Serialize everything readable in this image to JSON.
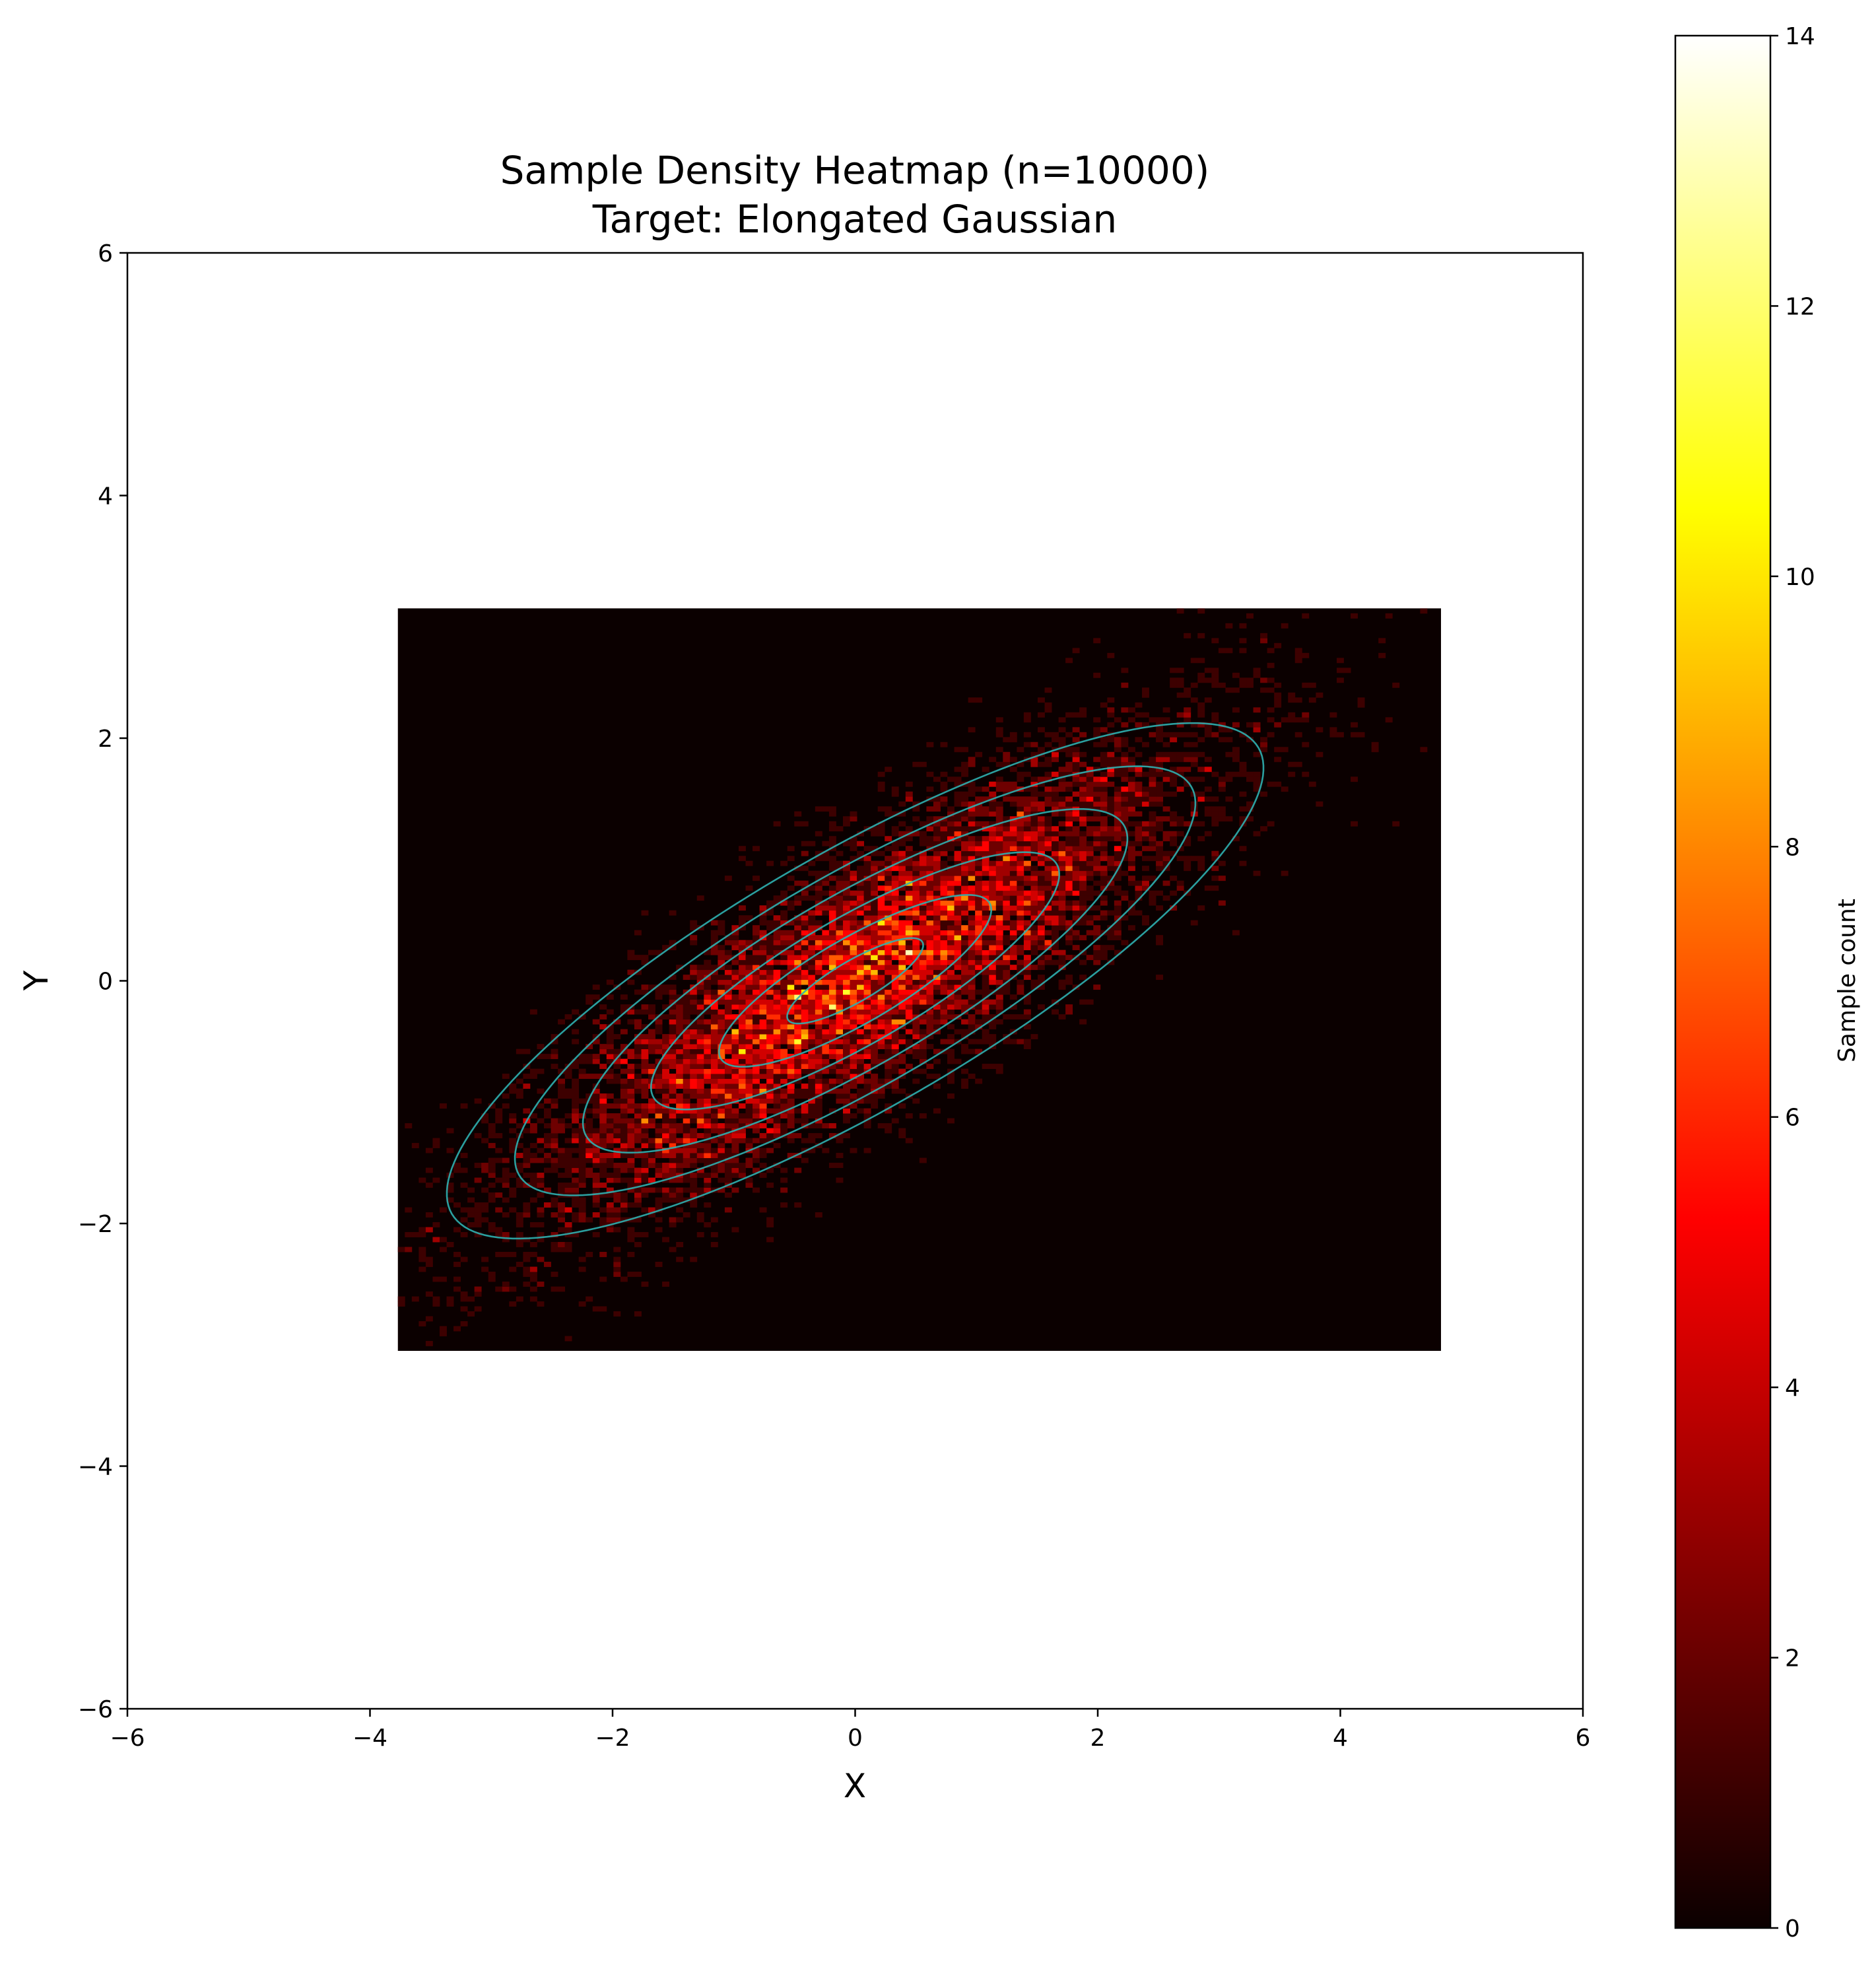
{
  "chart_data": {
    "type": "heatmap",
    "title": "Sample Density Heatmap (n=10000)",
    "subtitle": "Target: Elongated Gaussian",
    "xlabel": "X",
    "ylabel": "Y",
    "xlim": [
      -6,
      6
    ],
    "ylim": [
      -6,
      6
    ],
    "xticks": [
      -6,
      -4,
      -2,
      0,
      2,
      4,
      6
    ],
    "yticks": [
      -6,
      -4,
      -2,
      0,
      2,
      4,
      6
    ],
    "xtick_labels": [
      "−6",
      "−4",
      "−2",
      "0",
      "2",
      "4",
      "6"
    ],
    "ytick_labels": [
      "−6",
      "−4",
      "−2",
      "0",
      "2",
      "4",
      "6"
    ],
    "grid": false,
    "histogram": {
      "n_samples": 10000,
      "x_range": [
        -3.77,
        4.83
      ],
      "y_range": [
        -3.05,
        3.07
      ],
      "mean": [
        0,
        0
      ],
      "covariance": [
        [
          2.0,
          1.2
        ],
        [
          1.2,
          1.0
        ]
      ],
      "peak_count": 14
    },
    "contours": {
      "center": [
        0,
        0
      ],
      "angle_deg": 30,
      "semi_axes": [
        [
          0.64,
          0.17
        ],
        [
          1.28,
          0.35
        ],
        [
          1.92,
          0.52
        ],
        [
          2.56,
          0.7
        ],
        [
          3.2,
          0.87
        ],
        [
          3.84,
          1.05
        ]
      ],
      "color": "#2fb0b0"
    },
    "colorbar": {
      "label": "Sample count",
      "range": [
        0,
        14
      ],
      "ticks": [
        0,
        2,
        4,
        6,
        8,
        10,
        12,
        14
      ],
      "colormap": "hot"
    }
  }
}
